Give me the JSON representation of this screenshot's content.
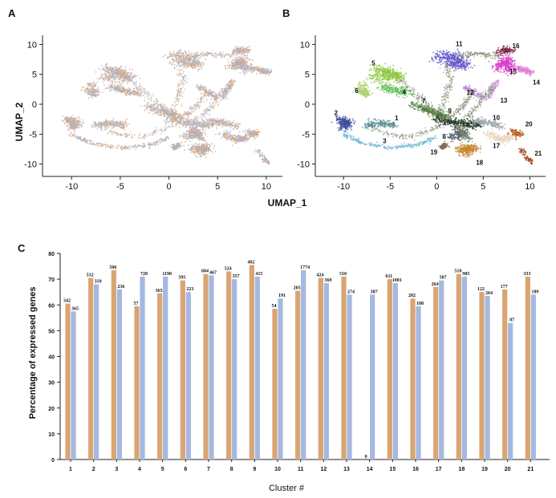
{
  "panels": {
    "a": "A",
    "b": "B",
    "c": "C"
  },
  "colors": {
    "orange": "#D9A574",
    "blue": "#A5B8E0",
    "axis": "#222222"
  },
  "chart_data": [
    {
      "type": "scatter",
      "panel": "A",
      "xlabel": "",
      "ylabel": "UMAP_2",
      "xlim": [
        -12,
        11
      ],
      "ylim": [
        -11,
        11
      ],
      "xticks": [
        "-10",
        "-5",
        "0",
        "5",
        "10"
      ],
      "yticks": [
        "10",
        "5",
        "0",
        "-5",
        "-10"
      ],
      "series_colors": [
        "#A5B8E0",
        "#D9A574"
      ]
    },
    {
      "type": "scatter",
      "panel": "B",
      "xlabel": "",
      "ylabel": "",
      "xlim": [
        -12,
        11
      ],
      "ylim": [
        -11,
        11
      ],
      "xticks": [
        "-10",
        "-5",
        "0",
        "5",
        "10"
      ],
      "yticks": [
        "10",
        "5",
        "0",
        "-5",
        "-10"
      ],
      "cluster_labels": [
        "1",
        "2",
        "3",
        "4",
        "5",
        "6",
        "7",
        "8",
        "9",
        "10",
        "11",
        "12",
        "13",
        "14",
        "15",
        "16",
        "17",
        "18",
        "19",
        "20",
        "21"
      ]
    },
    {
      "shared_xlabel": "UMAP_1"
    },
    {
      "type": "bar",
      "panel": "C",
      "xlabel": "Cluster #",
      "ylabel": "Percentage of expressed genes",
      "ylim": [
        0,
        80
      ],
      "yticks": [
        "0",
        "10",
        "20",
        "30",
        "40",
        "50",
        "60",
        "70",
        "80"
      ],
      "categories": [
        "1",
        "2",
        "3",
        "4",
        "5",
        "6",
        "7",
        "8",
        "9",
        "10",
        "11",
        "12",
        "13",
        "14",
        "15",
        "16",
        "17",
        "18",
        "19",
        "20",
        "21"
      ],
      "series": [
        {
          "values": [
            60.5,
            70.5,
            73.5,
            59.5,
            64.5,
            69.5,
            72,
            73,
            75.5,
            58.5,
            65.5,
            70.5,
            71,
            0,
            70,
            62.5,
            67,
            72,
            65,
            66,
            71
          ],
          "labels": [
            "342",
            "532",
            "506",
            "57",
            "365",
            "595",
            "604",
            "524",
            "402",
            "54",
            "205",
            "424",
            "510",
            "0",
            "611",
            "282",
            "264",
            "510",
            "122",
            "177",
            "333"
          ]
        },
        {
          "values": [
            57.5,
            68,
            66,
            71,
            71,
            65,
            71.5,
            70,
            71,
            62.5,
            73.5,
            68.5,
            64,
            64,
            68.5,
            59.5,
            69.5,
            71,
            63.5,
            53,
            64
          ],
          "labels": [
            "365",
            "359",
            "236",
            "720",
            "1190",
            "223",
            "467",
            "357",
            "415",
            "191",
            "1774",
            "369",
            "274",
            "387",
            "1001",
            "188",
            "587",
            "985",
            "264",
            "87",
            "189"
          ]
        }
      ]
    }
  ]
}
